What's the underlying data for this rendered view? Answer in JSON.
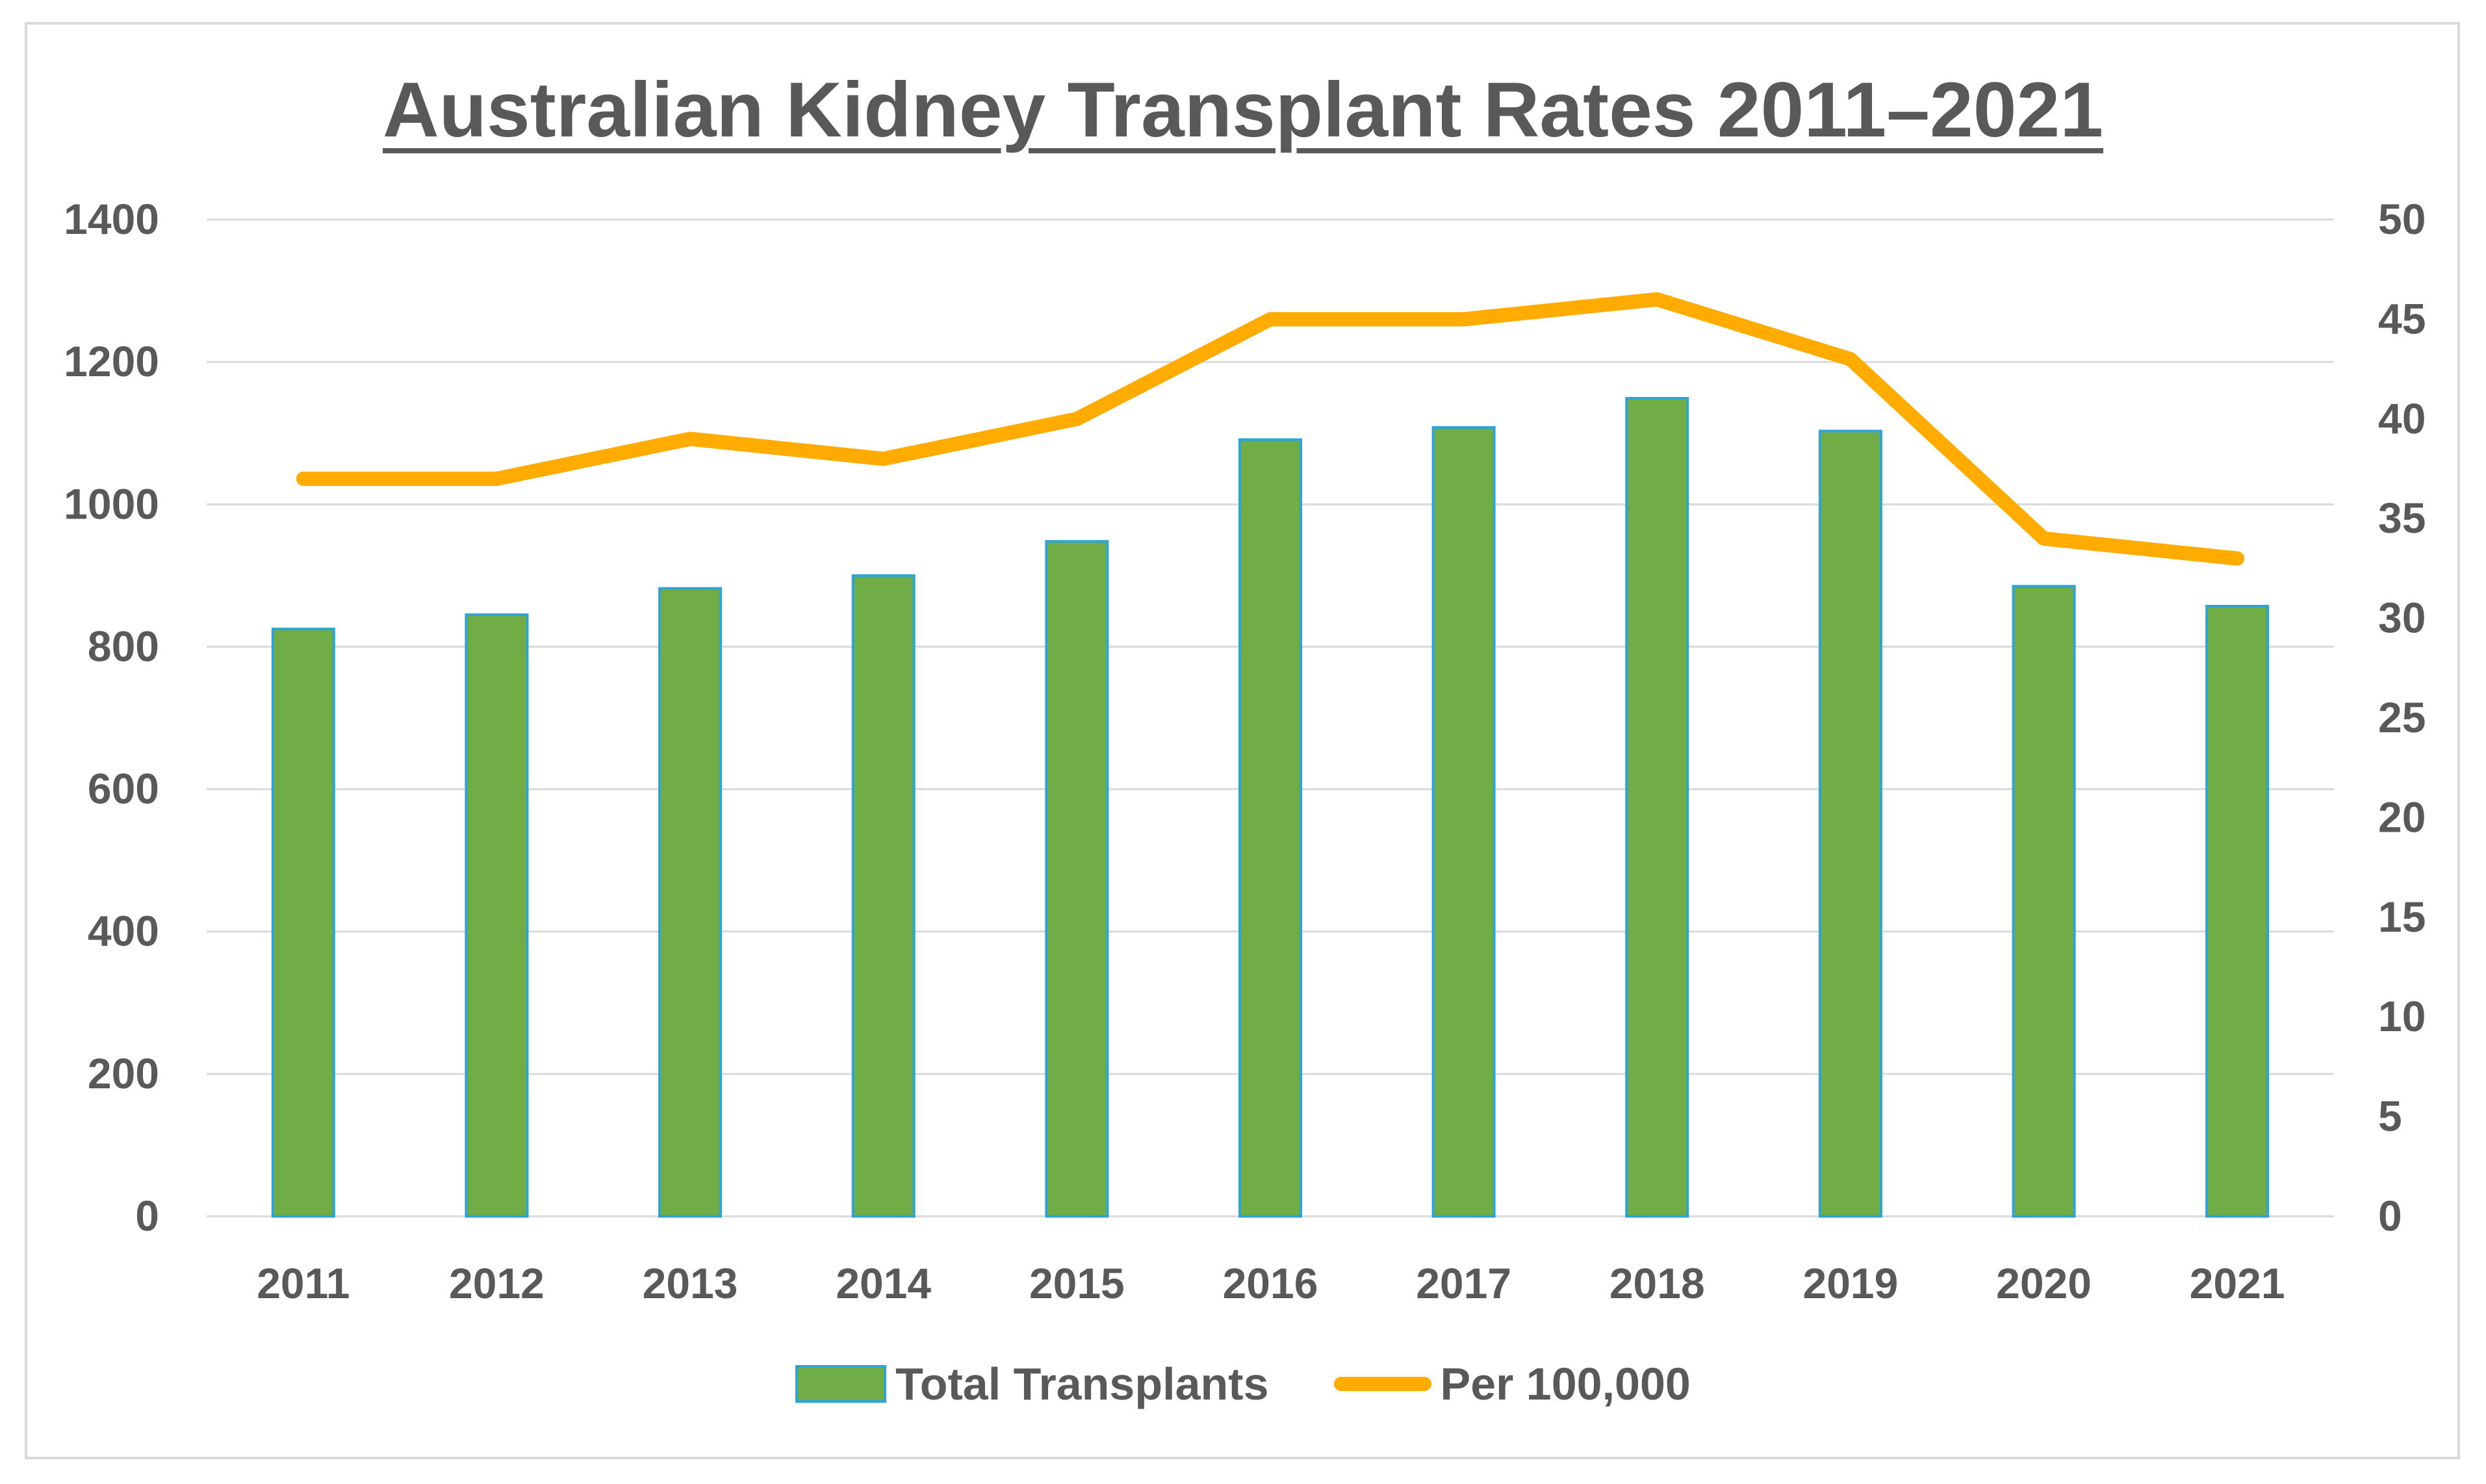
{
  "chart_data": {
    "type": "bar",
    "title": "Australian Kidney Transplant Rates 2011–2021",
    "categories": [
      "2011",
      "2012",
      "2013",
      "2014",
      "2015",
      "2016",
      "2017",
      "2018",
      "2019",
      "2020",
      "2021"
    ],
    "series": [
      {
        "name": "Total Transplants",
        "type": "bar",
        "axis": "left",
        "color": "#70ad47",
        "edge_color": "#2ea3d6",
        "values": [
          825,
          845,
          882,
          900,
          948,
          1091,
          1108,
          1149,
          1103,
          885,
          857
        ]
      },
      {
        "name": "Per 100,000",
        "type": "line",
        "axis": "right",
        "color": "#ffab00",
        "values": [
          37,
          37,
          39,
          38,
          40,
          45,
          45,
          46,
          43,
          34,
          33
        ]
      }
    ],
    "y_left": {
      "min": 0,
      "max": 1400,
      "ticks": [
        "0",
        "200",
        "400",
        "600",
        "800",
        "1000",
        "1200",
        "1400"
      ]
    },
    "y_right": {
      "min": 0,
      "max": 50,
      "ticks": [
        "0",
        "5",
        "10",
        "15",
        "20",
        "25",
        "30",
        "35",
        "40",
        "45",
        "50"
      ]
    },
    "xlabel": "",
    "ylabel": "",
    "grid": true,
    "legend_position": "bottom",
    "gridline_color": "#d9d9d9",
    "text_color": "#595959"
  }
}
